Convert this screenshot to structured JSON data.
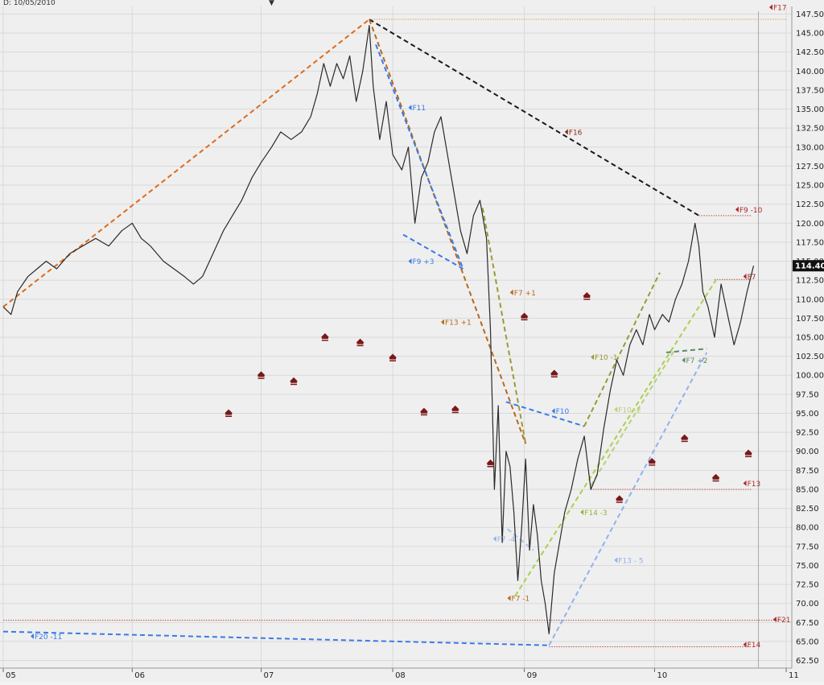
{
  "header": {
    "date_label": "D: 10/05/2010",
    "marker": "▼"
  },
  "chart_data": {
    "type": "line",
    "title": "",
    "xlabel": "",
    "ylabel": "",
    "ylim": [
      61.5,
      148.5
    ],
    "grid": true,
    "y_ticks": [
      62.5,
      65,
      67.5,
      70,
      72.5,
      75,
      77.5,
      80,
      82.5,
      85,
      87.5,
      90,
      92.5,
      95,
      97.5,
      100,
      102.5,
      105,
      107.5,
      110,
      112.5,
      115,
      117.5,
      120,
      122.5,
      125,
      127.5,
      130,
      132.5,
      135,
      137.5,
      140,
      142.5,
      145,
      147.5
    ],
    "x_ticks": [
      {
        "label": "05",
        "t": 2004.99
      },
      {
        "label": "06",
        "t": 2005.98
      },
      {
        "label": "07",
        "t": 2006.97
      },
      {
        "label": "08",
        "t": 2007.98
      },
      {
        "label": "09",
        "t": 2008.99
      },
      {
        "label": "10",
        "t": 2009.99
      },
      {
        "label": "11",
        "t": 2011.0
      }
    ],
    "last_price": {
      "label": "114.40",
      "value": 114.4
    },
    "series": [
      {
        "name": "",
        "color": "#2a2a2a",
        "points": [
          [
            2004.99,
            109
          ],
          [
            2005.05,
            108
          ],
          [
            2005.1,
            111
          ],
          [
            2005.18,
            113
          ],
          [
            2005.25,
            114
          ],
          [
            2005.32,
            115
          ],
          [
            2005.4,
            114
          ],
          [
            2005.5,
            116
          ],
          [
            2005.6,
            117
          ],
          [
            2005.7,
            118
          ],
          [
            2005.8,
            117
          ],
          [
            2005.9,
            119
          ],
          [
            2005.98,
            120
          ],
          [
            2006.05,
            118
          ],
          [
            2006.12,
            117
          ],
          [
            2006.22,
            115
          ],
          [
            2006.3,
            114
          ],
          [
            2006.38,
            113
          ],
          [
            2006.45,
            112
          ],
          [
            2006.52,
            113
          ],
          [
            2006.6,
            116
          ],
          [
            2006.68,
            119
          ],
          [
            2006.75,
            121
          ],
          [
            2006.82,
            123
          ],
          [
            2006.9,
            126
          ],
          [
            2006.97,
            128
          ],
          [
            2007.05,
            130
          ],
          [
            2007.12,
            132
          ],
          [
            2007.2,
            131
          ],
          [
            2007.28,
            132
          ],
          [
            2007.35,
            134
          ],
          [
            2007.4,
            137
          ],
          [
            2007.45,
            141
          ],
          [
            2007.5,
            138
          ],
          [
            2007.55,
            141
          ],
          [
            2007.6,
            139
          ],
          [
            2007.65,
            142
          ],
          [
            2007.7,
            136
          ],
          [
            2007.75,
            140
          ],
          [
            2007.8,
            146
          ],
          [
            2007.83,
            138
          ],
          [
            2007.88,
            131
          ],
          [
            2007.93,
            136
          ],
          [
            2007.98,
            129
          ],
          [
            2008.05,
            127
          ],
          [
            2008.1,
            130
          ],
          [
            2008.15,
            120
          ],
          [
            2008.2,
            126
          ],
          [
            2008.25,
            128
          ],
          [
            2008.3,
            132
          ],
          [
            2008.35,
            134
          ],
          [
            2008.4,
            129
          ],
          [
            2008.45,
            124
          ],
          [
            2008.5,
            119
          ],
          [
            2008.55,
            116
          ],
          [
            2008.6,
            121
          ],
          [
            2008.65,
            123
          ],
          [
            2008.7,
            118
          ],
          [
            2008.73,
            106
          ],
          [
            2008.76,
            85
          ],
          [
            2008.79,
            96
          ],
          [
            2008.82,
            78
          ],
          [
            2008.85,
            90
          ],
          [
            2008.88,
            88
          ],
          [
            2008.91,
            82
          ],
          [
            2008.94,
            73
          ],
          [
            2008.97,
            80
          ],
          [
            2009.0,
            89
          ],
          [
            2009.03,
            77
          ],
          [
            2009.06,
            83
          ],
          [
            2009.09,
            79
          ],
          [
            2009.12,
            73
          ],
          [
            2009.15,
            70
          ],
          [
            2009.18,
            66
          ],
          [
            2009.22,
            74
          ],
          [
            2009.26,
            78
          ],
          [
            2009.3,
            82
          ],
          [
            2009.35,
            85
          ],
          [
            2009.4,
            89
          ],
          [
            2009.45,
            92
          ],
          [
            2009.5,
            85
          ],
          [
            2009.55,
            87
          ],
          [
            2009.6,
            93
          ],
          [
            2009.65,
            98
          ],
          [
            2009.7,
            102
          ],
          [
            2009.75,
            100
          ],
          [
            2009.8,
            104
          ],
          [
            2009.85,
            106
          ],
          [
            2009.9,
            104
          ],
          [
            2009.95,
            108
          ],
          [
            2009.99,
            106
          ],
          [
            2010.05,
            108
          ],
          [
            2010.1,
            107
          ],
          [
            2010.15,
            110
          ],
          [
            2010.2,
            112
          ],
          [
            2010.25,
            115
          ],
          [
            2010.3,
            120
          ],
          [
            2010.33,
            117
          ],
          [
            2010.36,
            111
          ],
          [
            2010.4,
            109
          ],
          [
            2010.45,
            105
          ],
          [
            2010.5,
            112
          ],
          [
            2010.55,
            108
          ],
          [
            2010.6,
            104
          ],
          [
            2010.65,
            107
          ],
          [
            2010.7,
            111
          ],
          [
            2010.75,
            114.4
          ]
        ]
      }
    ],
    "trend_lines": [
      {
        "color": "#e06a1a",
        "from": [
          2004.99,
          109.0
        ],
        "to": [
          2007.8,
          146.8
        ]
      },
      {
        "color": "#1a1a1a",
        "from": [
          2007.8,
          146.8
        ],
        "to": [
          2010.33,
          121.0
        ]
      },
      {
        "color": "#b8691c",
        "from": [
          2007.8,
          146.8
        ],
        "to": [
          2009.0,
          91.0
        ]
      },
      {
        "color": "#3a7be8",
        "from": [
          2007.85,
          143.5
        ],
        "to": [
          2008.52,
          114.0
        ]
      },
      {
        "color": "#3a7be8",
        "from": [
          2008.06,
          118.5
        ],
        "to": [
          2008.52,
          114.0
        ]
      },
      {
        "color": "#9a9a33",
        "from": [
          2008.67,
          122.0
        ],
        "to": [
          2009.0,
          91.0
        ]
      },
      {
        "color": "#3a7be8",
        "from": [
          2008.85,
          96.5
        ],
        "to": [
          2009.45,
          93.3
        ]
      },
      {
        "color": "#9a9a33",
        "from": [
          2009.45,
          93.3
        ],
        "to": [
          2010.03,
          113.5
        ]
      },
      {
        "color": "#a7d24a",
        "from": [
          2008.92,
          71.0
        ],
        "to": [
          2010.46,
          112.5
        ]
      },
      {
        "color": "#b9cf78",
        "from": [
          2009.5,
          85.5
        ],
        "to": [
          2010.15,
          103.5
        ]
      },
      {
        "color": "#5a8a64",
        "from": [
          2010.08,
          103.0
        ],
        "to": [
          2010.39,
          103.5
        ]
      },
      {
        "color": "#8fb2ee",
        "from": [
          2009.18,
          64.5
        ],
        "to": [
          2010.39,
          103.0
        ]
      },
      {
        "color": "#a8c0f0",
        "from": [
          2008.86,
          79.8
        ],
        "to": [
          2009.06,
          77.0
        ]
      },
      {
        "color": "#3a7be8",
        "from": [
          2004.99,
          66.3
        ],
        "to": [
          2009.18,
          64.5
        ]
      }
    ],
    "horizontal_levels": [
      {
        "color": "#e89a4e",
        "y": 146.8,
        "from": 2007.8,
        "to": 2011.0
      },
      {
        "color": "#c24a4a",
        "y": 121.0,
        "from": 2010.33,
        "to": 2010.73
      },
      {
        "color": "#c24a4a",
        "y": 112.6,
        "from": 2010.45,
        "to": 2010.73
      },
      {
        "color": "#c24a4a",
        "y": 85.0,
        "from": 2009.5,
        "to": 2010.73
      },
      {
        "color": "#c24a4a",
        "y": 67.8,
        "from": 2004.99,
        "to": 2011.0
      },
      {
        "color": "#c24a4a",
        "y": 64.3,
        "from": 2009.18,
        "to": 2010.73
      }
    ],
    "markers": {
      "color": "#7a1818",
      "points": [
        [
          2006.72,
          95.0
        ],
        [
          2006.97,
          100.0
        ],
        [
          2007.22,
          99.2
        ],
        [
          2007.46,
          105.0
        ],
        [
          2007.73,
          104.3
        ],
        [
          2007.98,
          102.3
        ],
        [
          2008.22,
          95.2
        ],
        [
          2008.46,
          95.5
        ],
        [
          2008.73,
          88.4
        ],
        [
          2008.99,
          107.7
        ],
        [
          2009.22,
          100.2
        ],
        [
          2009.47,
          110.4
        ],
        [
          2009.72,
          83.7
        ],
        [
          2009.97,
          88.6
        ],
        [
          2010.22,
          91.7
        ],
        [
          2010.46,
          86.5
        ],
        [
          2010.71,
          89.7
        ]
      ]
    },
    "annotations": [
      {
        "text": "F17",
        "x": 2010.87,
        "y": 148.4,
        "color": "#b02a2a"
      },
      {
        "text": "F16",
        "x": 2009.3,
        "y": 132.0,
        "color": "#8a2a1a"
      },
      {
        "text": "F11",
        "x": 2008.1,
        "y": 135.2,
        "color": "#3a7be8"
      },
      {
        "text": "F9 -10",
        "x": 2010.61,
        "y": 121.8,
        "color": "#b02a2a"
      },
      {
        "text": "F9 +3",
        "x": 2008.1,
        "y": 115.0,
        "color": "#3a7be8"
      },
      {
        "text": "F7",
        "x": 2010.67,
        "y": 113.0,
        "color": "#b02a2a"
      },
      {
        "text": "F7 +1",
        "x": 2008.88,
        "y": 110.9,
        "color": "#b8691c"
      },
      {
        "text": "F13 +1",
        "x": 2008.35,
        "y": 107.0,
        "color": "#b8691c"
      },
      {
        "text": "F10 -1",
        "x": 2009.5,
        "y": 102.4,
        "color": "#9a9a33"
      },
      {
        "text": "F7 +2",
        "x": 2010.2,
        "y": 102.0,
        "color": "#5a8a64"
      },
      {
        "text": "F10",
        "x": 2009.2,
        "y": 95.3,
        "color": "#3a7be8"
      },
      {
        "text": "F10 -2",
        "x": 2009.68,
        "y": 95.5,
        "color": "#b9cf78"
      },
      {
        "text": "F13",
        "x": 2010.67,
        "y": 85.8,
        "color": "#b02a2a"
      },
      {
        "text": "F14 -3",
        "x": 2009.42,
        "y": 82.0,
        "color": "#8fb73a"
      },
      {
        "text": "F7 -4",
        "x": 2008.75,
        "y": 78.5,
        "color": "#8fb2ee"
      },
      {
        "text": "F13 - 5",
        "x": 2009.68,
        "y": 75.7,
        "color": "#8fb2ee"
      },
      {
        "text": "F7 -1",
        "x": 2008.86,
        "y": 70.7,
        "color": "#b8691c"
      },
      {
        "text": "F21",
        "x": 2010.9,
        "y": 67.9,
        "color": "#b02a2a"
      },
      {
        "text": "F20 -11",
        "x": 2005.2,
        "y": 65.7,
        "color": "#3a7be8"
      },
      {
        "text": "F14",
        "x": 2010.67,
        "y": 64.6,
        "color": "#b02a2a"
      }
    ]
  }
}
